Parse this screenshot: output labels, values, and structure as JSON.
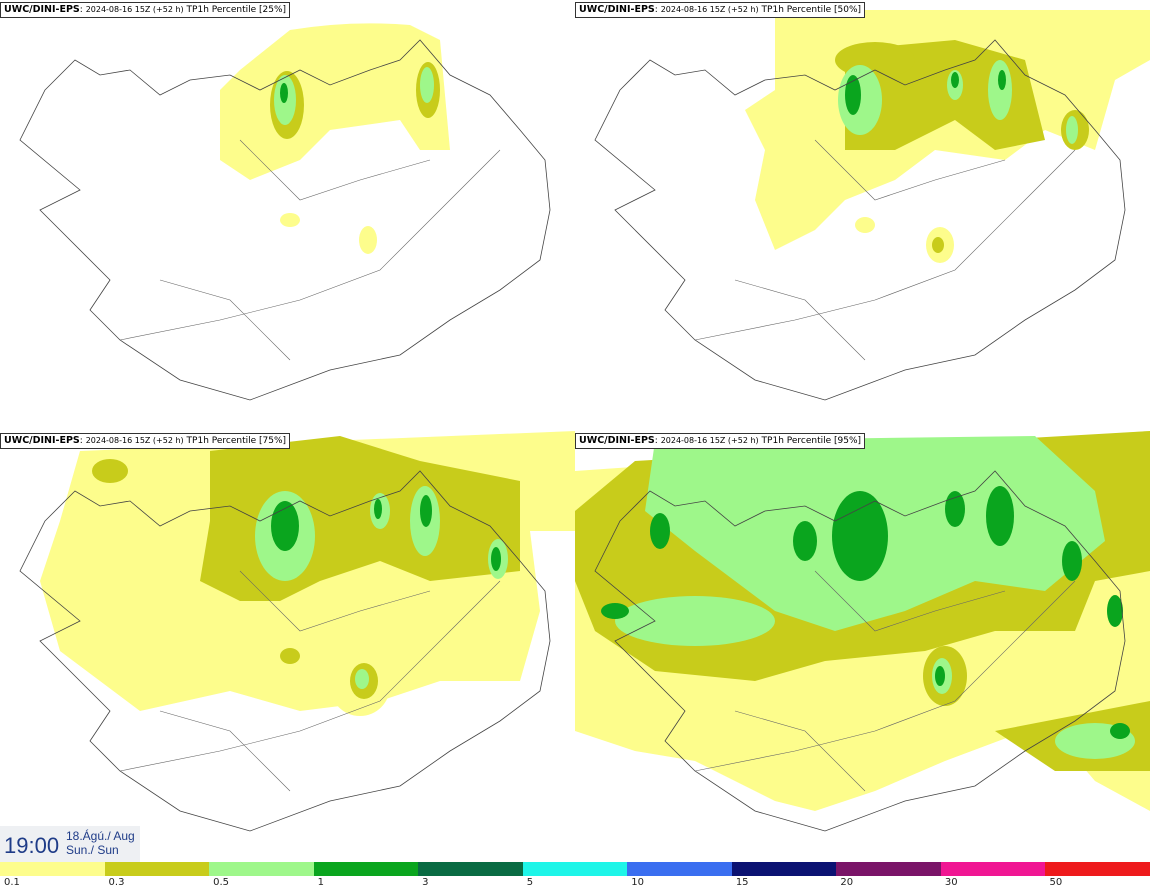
{
  "panels": [
    {
      "model": "UWC/DINI-EPS",
      "run": "2024-08-16 15Z (+52 h)",
      "label": "TP1h Percentile [25%]"
    },
    {
      "model": "UWC/DINI-EPS",
      "run": "2024-08-16 15Z (+52 h)",
      "label": "TP1h Percentile [50%]"
    },
    {
      "model": "UWC/DINI-EPS",
      "run": "2024-08-16 15Z (+52 h)",
      "label": "TP1h Percentile [75%]"
    },
    {
      "model": "UWC/DINI-EPS",
      "run": "2024-08-16 15Z (+52 h)",
      "label": "TP1h Percentile [95%]"
    }
  ],
  "valid_time": {
    "time": "19:00",
    "date": "18.Ágú./ Aug",
    "day": "Sun./ Sun"
  },
  "legend": {
    "colors": [
      "#fdfd8c",
      "#c8cc1b",
      "#9ef78a",
      "#0aa51e",
      "#096b43",
      "#1ef5e8",
      "#3a6ef0",
      "#0b1272",
      "#7a1468",
      "#f01693",
      "#ee1a1c"
    ],
    "ticks": [
      "0.1",
      "0.3",
      "0.5",
      "1",
      "3",
      "5",
      "10",
      "15",
      "20",
      "30",
      "50"
    ]
  }
}
